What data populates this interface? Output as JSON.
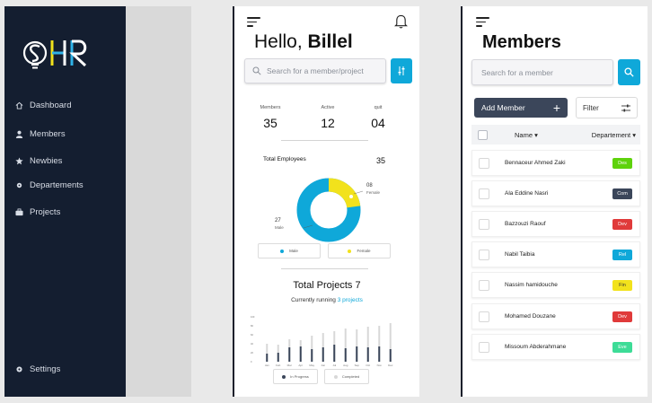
{
  "sidebar": {
    "logo_text": "HR",
    "items": [
      {
        "label": "Dashboard",
        "icon": "home-icon"
      },
      {
        "label": "Members",
        "icon": "user-icon"
      },
      {
        "label": "Newbies",
        "icon": "star-icon"
      },
      {
        "label": "Departements",
        "icon": "gear-icon"
      },
      {
        "label": "Projects",
        "icon": "briefcase-icon"
      }
    ],
    "settings_label": "Settings"
  },
  "home": {
    "greeting_prefix": "Hello,",
    "user_name": "Billel",
    "search_placeholder": "Search for a member/project",
    "stats": [
      {
        "label": "Members",
        "value": "35"
      },
      {
        "label": "Active",
        "value": "12"
      },
      {
        "label": "quit",
        "value": "04"
      }
    ],
    "total_employees_label": "Total Employees",
    "total_employees_value": "35",
    "donut": {
      "female_count": "08",
      "female_label": "Female",
      "male_count": "27",
      "male_label": "Male",
      "male_color": "#0fa8d9",
      "female_color": "#f2e21c"
    },
    "legend": {
      "male": "Male",
      "female": "Female"
    },
    "total_projects_label": "Total Projects",
    "total_projects_value": "7",
    "running_prefix": "Currently running",
    "running_link": "3 projects",
    "chart_data": {
      "type": "bar",
      "categories": [
        "Jan",
        "Feb",
        "Mar",
        "Apr",
        "May",
        "Jun",
        "Jul",
        "Aug",
        "Sep",
        "Oct",
        "Nov",
        "Dec"
      ],
      "series": [
        {
          "name": "In Progress",
          "values": [
            18,
            20,
            32,
            34,
            28,
            32,
            38,
            30,
            34,
            32,
            34,
            28
          ],
          "color": "#3b465a"
        },
        {
          "name": "Completed",
          "values": [
            40,
            38,
            50,
            48,
            58,
            64,
            68,
            74,
            72,
            78,
            80,
            86
          ],
          "color": "#d8d8d8"
        }
      ],
      "legend": [
        "In Progress",
        "Completed"
      ]
    }
  },
  "members": {
    "title": "Members",
    "search_placeholder": "Search for a member",
    "add_label": "Add Member",
    "filter_label": "Filter",
    "col_name": "Name",
    "col_department": "Departement",
    "rows": [
      {
        "name": "Bennaceur Ahmed Zaki",
        "dept": "Des",
        "bg": "#5ed20c",
        "fg": "#ffffff"
      },
      {
        "name": "Ala Eddine Nasri",
        "dept": "Com",
        "bg": "#3b465a",
        "fg": "#ffffff"
      },
      {
        "name": "Bazzouzi Raouf",
        "dept": "Dev",
        "bg": "#e03a3a",
        "fg": "#ffffff"
      },
      {
        "name": "Nabil Taibia",
        "dept": "Rel",
        "bg": "#0fa8d9",
        "fg": "#ffffff"
      },
      {
        "name": "Nassim hamidouche",
        "dept": "Fin",
        "bg": "#f2e21c",
        "fg": "#333333"
      },
      {
        "name": "Mohamed Douzane",
        "dept": "Dev",
        "bg": "#e03a3a",
        "fg": "#ffffff"
      },
      {
        "name": "Missoum Abderahmane",
        "dept": "Eve",
        "bg": "#3ddc97",
        "fg": "#ffffff"
      }
    ]
  }
}
